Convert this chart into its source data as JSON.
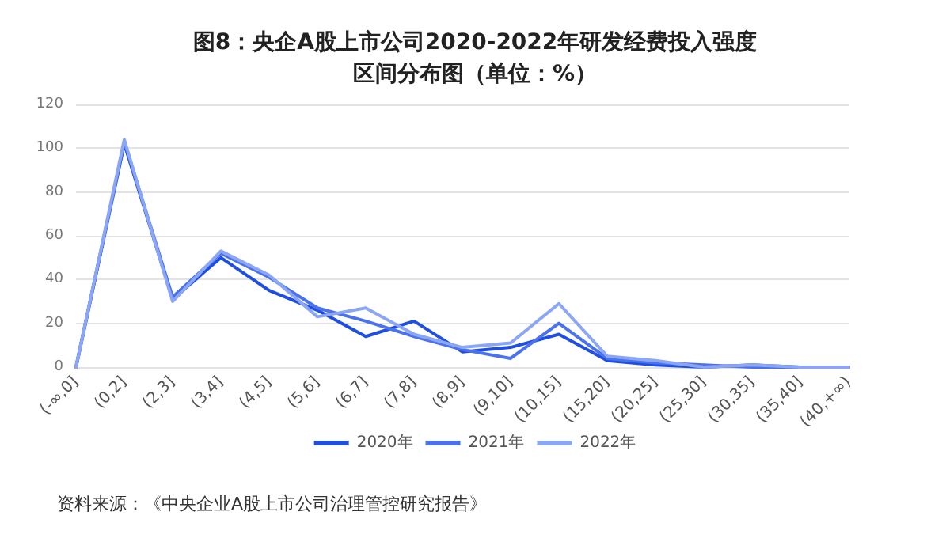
{
  "chart_data": {
    "type": "line",
    "title": "图8：央企A股上市公司2020-2022年研发经费投入强度区间分布图（单位：%）",
    "categories": [
      "(-∞,0]",
      "(0,2]",
      "(2,3]",
      "(3,4]",
      "(4,5]",
      "(5,6]",
      "(6,7]",
      "(7,8]",
      "(8,9]",
      "(9,10]",
      "(10,15]",
      "(15,20]",
      "(20,25]",
      "(25,30]",
      "(30,35]",
      "(35,40]",
      "(40,+∞)"
    ],
    "series": [
      {
        "name": "2020年",
        "color": "#1f4fe0",
        "values": [
          0,
          102,
          31,
          50,
          35,
          26,
          14,
          21,
          7,
          9,
          15,
          3,
          1,
          0,
          1,
          0,
          0
        ]
      },
      {
        "name": "2021年",
        "color": "#4a72ee",
        "values": [
          0,
          103,
          32,
          52,
          41,
          27,
          21,
          14,
          8,
          4,
          20,
          4,
          2,
          1,
          0,
          0,
          0
        ]
      },
      {
        "name": "2022年",
        "color": "#8aa6f5",
        "values": [
          0,
          104,
          30,
          53,
          42,
          23,
          27,
          15,
          9,
          11,
          29,
          5,
          3,
          0,
          1,
          0,
          0
        ]
      }
    ],
    "ylim": [
      0,
      120
    ],
    "yticks": [
      0,
      20,
      40,
      60,
      80,
      100,
      120
    ],
    "grid": "y",
    "legend": "bottom",
    "marker": "none",
    "line_style": "solid",
    "annotations": [
      "资料来源：《中央企业A股上市公司治理管控研究报告》"
    ]
  }
}
